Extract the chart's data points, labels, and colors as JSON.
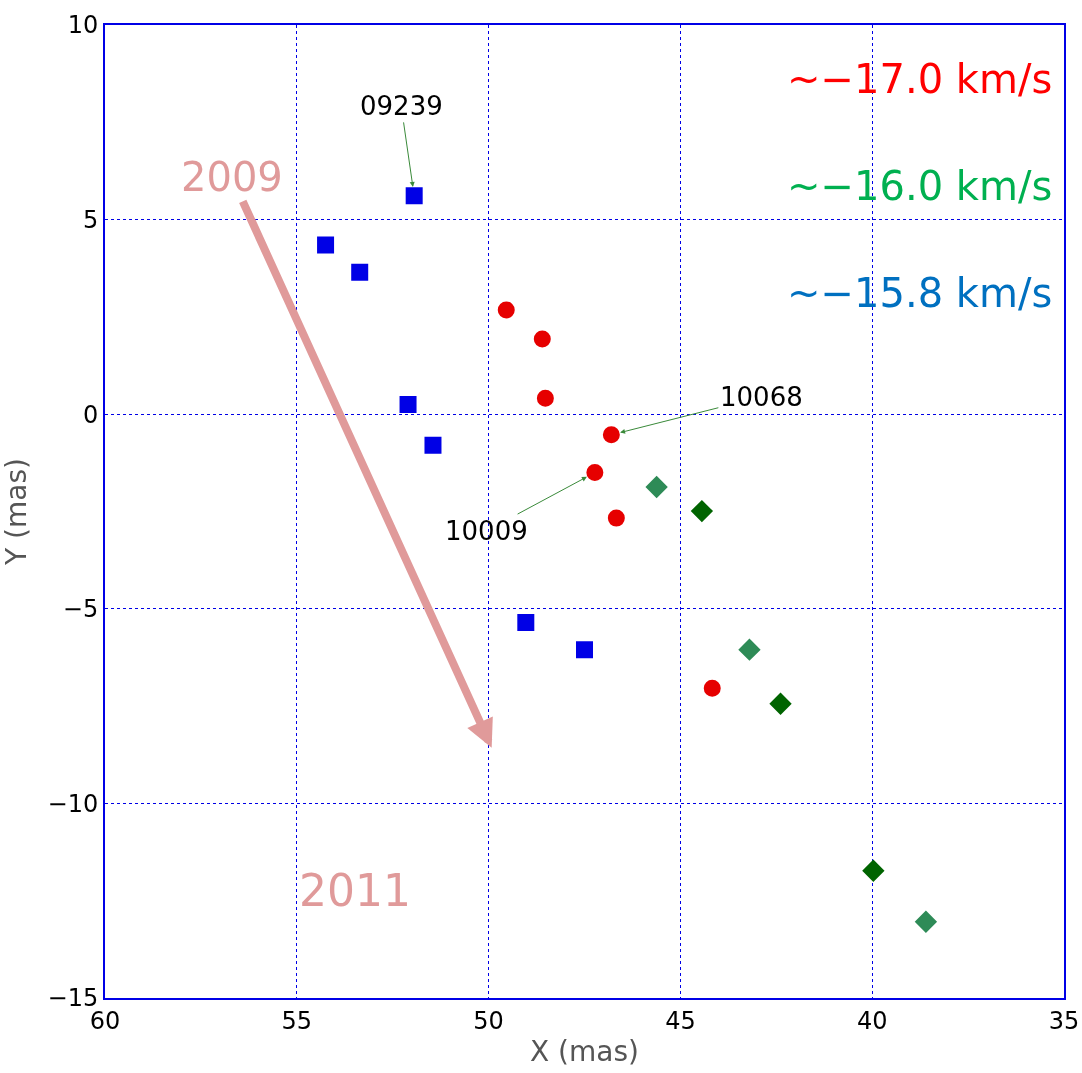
{
  "chart_data": {
    "type": "scatter",
    "xlabel": "X (mas)",
    "ylabel": "Y (mas)",
    "xlim": [
      60,
      35
    ],
    "xticks": [
      60,
      55,
      50,
      45,
      40,
      35
    ],
    "ylim": [
      -15,
      10
    ],
    "yticks": [
      -15,
      -10,
      -5,
      0,
      5,
      10
    ],
    "grid": true,
    "series": [
      {
        "color": "#0000e6",
        "marker": "square",
        "x": [
          51.94,
          54.25,
          52.1,
          47.5
        ],
        "values": [
          5.61,
          4.35,
          0.25,
          -6.05
        ]
      },
      {
        "color": "#0000e6",
        "marker": "square",
        "x": [
          53.36,
          51.45,
          49.03
        ],
        "values": [
          3.65,
          -0.8,
          -5.35
        ]
      },
      {
        "color": "#e60000",
        "marker": "circle",
        "x": [
          49.54,
          48.52,
          46.8,
          47.23
        ],
        "values": [
          2.68,
          0.41,
          -0.53,
          -1.5
        ]
      },
      {
        "color": "#e60000",
        "marker": "circle",
        "x": [
          48.6,
          46.67,
          44.17
        ],
        "values": [
          1.93,
          -2.67,
          -7.04
        ]
      },
      {
        "color": "#2e8b57",
        "marker": "diamond",
        "x": [
          45.62,
          43.2,
          38.6
        ],
        "values": [
          -1.87,
          -6.05,
          -13.04
        ]
      },
      {
        "color": "#006400",
        "marker": "diamond",
        "x": [
          44.44,
          42.39,
          39.97
        ],
        "values": [
          -2.49,
          -7.44,
          -11.73
        ]
      }
    ],
    "annotations": [
      {
        "text": "09239",
        "x": 51.94,
        "y": 5.61
      },
      {
        "text": "10068",
        "x": 46.8,
        "y": -0.53
      },
      {
        "text": "10009",
        "x": 47.23,
        "y": -1.5
      },
      "~−17.0 km/s",
      "~−16.0 km/s",
      "~−15.8 km/s",
      "2009",
      "2011"
    ]
  }
}
